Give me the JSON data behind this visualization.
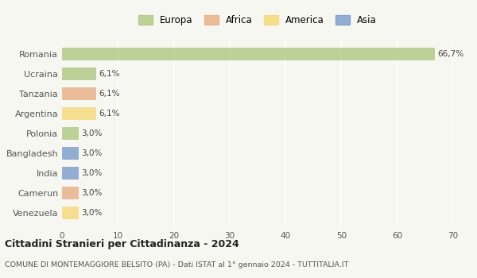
{
  "categories": [
    "Romania",
    "Ucraina",
    "Tanzania",
    "Argentina",
    "Polonia",
    "Bangladesh",
    "India",
    "Camerun",
    "Venezuela"
  ],
  "values": [
    66.7,
    6.1,
    6.1,
    6.1,
    3.0,
    3.0,
    3.0,
    3.0,
    3.0
  ],
  "colors": [
    "#a8c57a",
    "#a8c57a",
    "#e8a87c",
    "#f5d76e",
    "#a8c57a",
    "#7094c8",
    "#7094c8",
    "#e8a87c",
    "#f5d76e"
  ],
  "labels": [
    "66,7%",
    "6,1%",
    "6,1%",
    "6,1%",
    "3,0%",
    "3,0%",
    "3,0%",
    "3,0%",
    "3,0%"
  ],
  "legend_entries": [
    {
      "label": "Europa",
      "color": "#a8c57a"
    },
    {
      "label": "Africa",
      "color": "#e8a87c"
    },
    {
      "label": "America",
      "color": "#f5d76e"
    },
    {
      "label": "Asia",
      "color": "#7094c8"
    }
  ],
  "xlim": [
    0,
    70
  ],
  "xticks": [
    0,
    10,
    20,
    30,
    40,
    50,
    60,
    70
  ],
  "title": "Cittadini Stranieri per Cittadinanza - 2024",
  "subtitle": "COMUNE DI MONTEMAGGIORE BELSITO (PA) - Dati ISTAT al 1° gennaio 2024 - TUTTITALIA.IT",
  "background_color": "#f7f7f2",
  "grid_color": "#ffffff",
  "bar_alpha": 0.75,
  "bar_height": 0.65
}
